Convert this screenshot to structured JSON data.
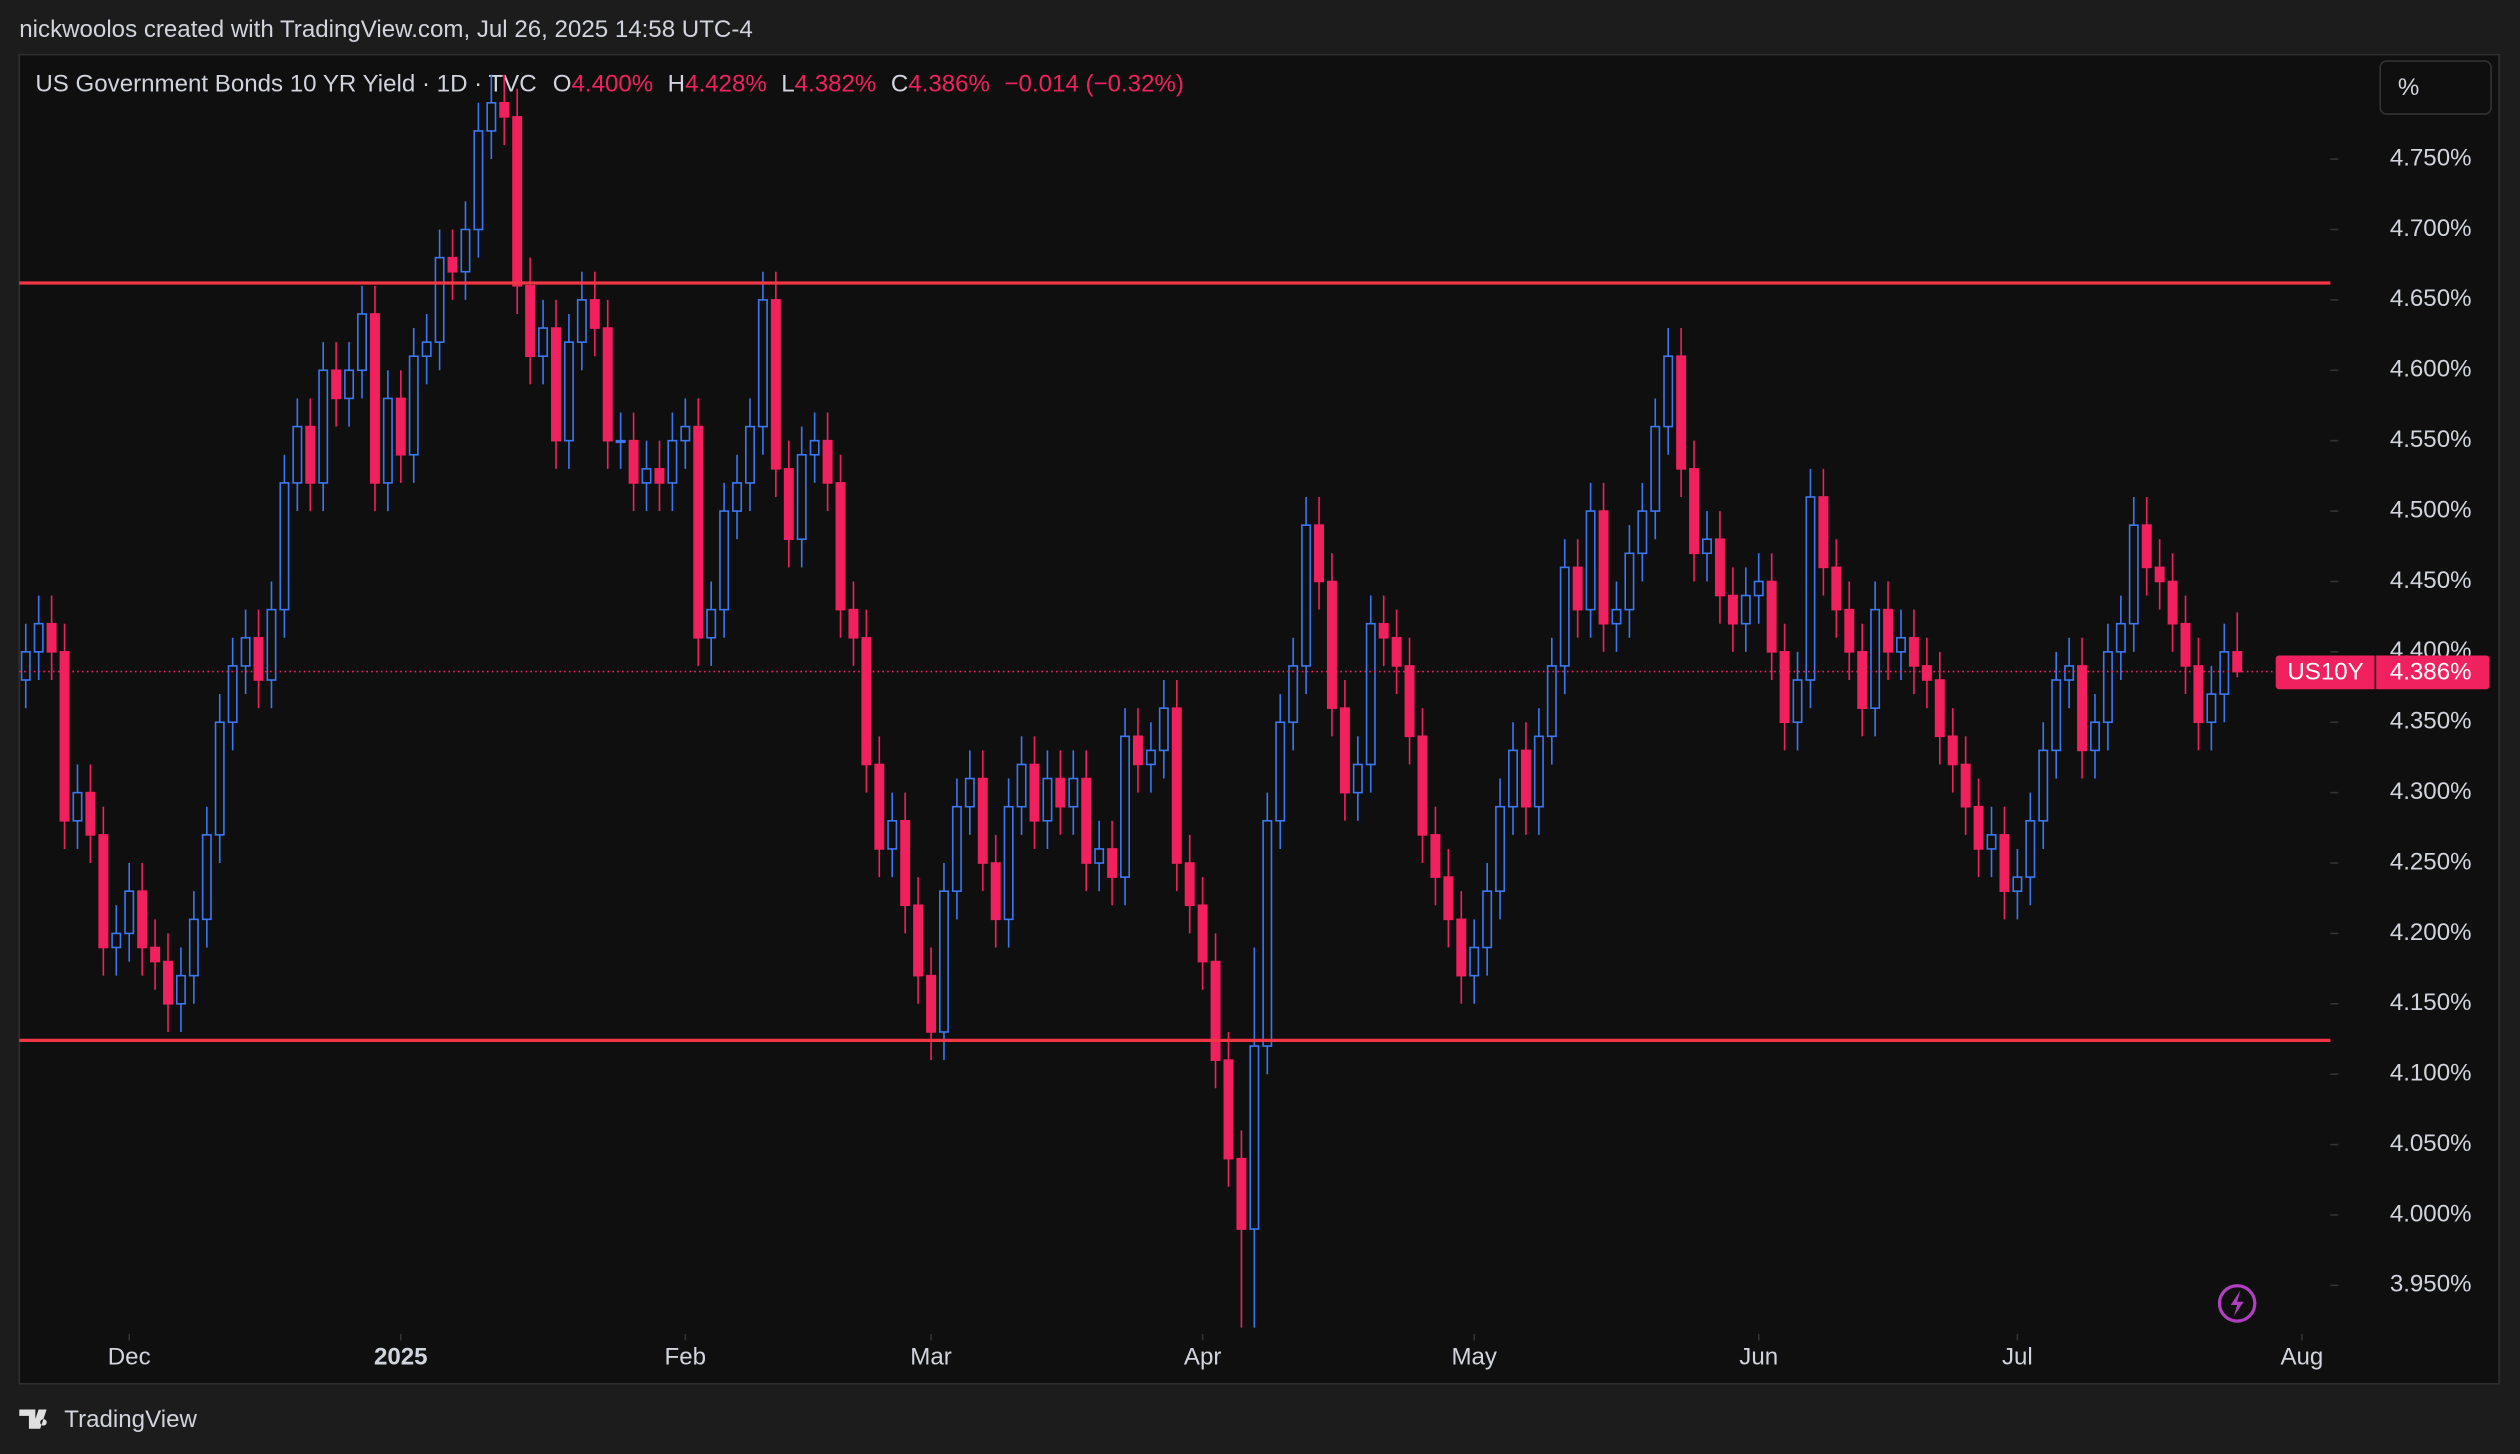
{
  "header": {
    "credit": "nickwoolos created with TradingView.com, Jul 26, 2025 14:58 UTC-4",
    "brand": "TradingView",
    "unit_button": "%"
  },
  "chart_data": {
    "type": "candlestick",
    "title": "US Government Bonds 10 YR Yield · 1D · TVC",
    "ohlc_legend": [
      {
        "key": "O",
        "text": "4.400%"
      },
      {
        "key": "H",
        "text": "4.428%"
      },
      {
        "key": "L",
        "text": "4.382%"
      },
      {
        "key": "C",
        "text": "4.386%"
      }
    ],
    "change_text": "−0.014 (−0.32%)",
    "up_color": "#3b78f0",
    "down_color": "#f0215e",
    "level_color": "#f23645",
    "xlim": [
      -0.5,
      178.2
    ],
    "ylim": [
      3.9155,
      4.8242
    ],
    "xticks": [
      {
        "value": 8,
        "label": "Dec"
      },
      {
        "value": 29,
        "label": "2025"
      },
      {
        "value": 51,
        "label": "Feb"
      },
      {
        "value": 70,
        "label": "Mar"
      },
      {
        "value": 91,
        "label": "Apr"
      },
      {
        "value": 112,
        "label": "May"
      },
      {
        "value": 134,
        "label": "Jun"
      },
      {
        "value": 154,
        "label": "Jul"
      },
      {
        "value": 176,
        "label": "Aug"
      }
    ],
    "yticks": [
      {
        "value": 3.95,
        "label": "3.950%"
      },
      {
        "value": 4.0,
        "label": "4.000%"
      },
      {
        "value": 4.05,
        "label": "4.050%"
      },
      {
        "value": 4.1,
        "label": "4.100%"
      },
      {
        "value": 4.15,
        "label": "4.150%"
      },
      {
        "value": 4.2,
        "label": "4.200%"
      },
      {
        "value": 4.25,
        "label": "4.250%"
      },
      {
        "value": 4.3,
        "label": "4.300%"
      },
      {
        "value": 4.35,
        "label": "4.350%"
      },
      {
        "value": 4.4,
        "label": "4.400%"
      },
      {
        "value": 4.45,
        "label": "4.450%"
      },
      {
        "value": 4.5,
        "label": "4.500%"
      },
      {
        "value": 4.55,
        "label": "4.550%"
      },
      {
        "value": 4.6,
        "label": "4.600%"
      },
      {
        "value": 4.65,
        "label": "4.650%"
      },
      {
        "value": 4.7,
        "label": "4.700%"
      },
      {
        "value": 4.75,
        "label": "4.750%"
      }
    ],
    "levels": [
      4.662,
      4.124
    ],
    "price_tag": {
      "symbol": "US10Y",
      "value": 4.386,
      "label": "4.386%"
    },
    "open": [
      4.38,
      4.4,
      4.42,
      4.4,
      4.28,
      4.3,
      4.27,
      4.19,
      4.2,
      4.23,
      4.19,
      4.18,
      4.15,
      4.17,
      4.21,
      4.27,
      4.35,
      4.39,
      4.41,
      4.38,
      4.43,
      4.52,
      4.56,
      4.52,
      4.6,
      4.58,
      4.6,
      4.64,
      4.52,
      4.58,
      4.54,
      4.61,
      4.62,
      4.68,
      4.67,
      4.7,
      4.77,
      4.79,
      4.78,
      4.66,
      4.61,
      4.63,
      4.55,
      4.62,
      4.65,
      4.63,
      4.55,
      4.55,
      4.52,
      4.53,
      4.52,
      4.55,
      4.56,
      4.41,
      4.43,
      4.5,
      4.52,
      4.56,
      4.65,
      4.53,
      4.48,
      4.54,
      4.55,
      4.52,
      4.43,
      4.41,
      4.32,
      4.26,
      4.28,
      4.22,
      4.17,
      4.13,
      4.23,
      4.29,
      4.31,
      4.25,
      4.21,
      4.29,
      4.32,
      4.28,
      4.31,
      4.29,
      4.31,
      4.25,
      4.26,
      4.24,
      4.34,
      4.32,
      4.33,
      4.36,
      4.25,
      4.22,
      4.18,
      4.11,
      4.04,
      3.99,
      4.12,
      4.28,
      4.35,
      4.39,
      4.49,
      4.45,
      4.36,
      4.3,
      4.32,
      4.42,
      4.41,
      4.39,
      4.34,
      4.27,
      4.24,
      4.21,
      4.17,
      4.19,
      4.23,
      4.29,
      4.33,
      4.29,
      4.34,
      4.39,
      4.46,
      4.43,
      4.5,
      4.42,
      4.43,
      4.47,
      4.5,
      4.56,
      4.61,
      4.53,
      4.47,
      4.48,
      4.44,
      4.42,
      4.44,
      4.45,
      4.4,
      4.35,
      4.38,
      4.51,
      4.46,
      4.43,
      4.4,
      4.36,
      4.43,
      4.4,
      4.41,
      4.39,
      4.38,
      4.34,
      4.32,
      4.29,
      4.26,
      4.27,
      4.23,
      4.24,
      4.28,
      4.33,
      4.38,
      4.39,
      4.33,
      4.35,
      4.4,
      4.42,
      4.49,
      4.46,
      4.45,
      4.42,
      4.39,
      4.35,
      4.37,
      4.4
    ],
    "high": [
      4.42,
      4.44,
      4.44,
      4.42,
      4.32,
      4.32,
      4.29,
      4.22,
      4.25,
      4.25,
      4.21,
      4.2,
      4.19,
      4.23,
      4.29,
      4.37,
      4.41,
      4.43,
      4.43,
      4.45,
      4.54,
      4.58,
      4.58,
      4.62,
      4.62,
      4.62,
      4.66,
      4.66,
      4.6,
      4.6,
      4.63,
      4.64,
      4.7,
      4.7,
      4.72,
      4.79,
      4.81,
      4.81,
      4.8,
      4.68,
      4.65,
      4.65,
      4.64,
      4.67,
      4.67,
      4.65,
      4.57,
      4.57,
      4.55,
      4.55,
      4.57,
      4.58,
      4.58,
      4.45,
      4.52,
      4.54,
      4.58,
      4.67,
      4.67,
      4.55,
      4.56,
      4.57,
      4.57,
      4.54,
      4.45,
      4.43,
      4.34,
      4.3,
      4.3,
      4.24,
      4.19,
      4.25,
      4.31,
      4.33,
      4.33,
      4.27,
      4.31,
      4.34,
      4.34,
      4.33,
      4.33,
      4.33,
      4.33,
      4.28,
      4.28,
      4.36,
      4.36,
      4.35,
      4.38,
      4.38,
      4.27,
      4.24,
      4.2,
      4.13,
      4.06,
      4.19,
      4.3,
      4.37,
      4.41,
      4.51,
      4.51,
      4.47,
      4.38,
      4.34,
      4.44,
      4.44,
      4.43,
      4.41,
      4.36,
      4.29,
      4.26,
      4.23,
      4.21,
      4.25,
      4.31,
      4.35,
      4.35,
      4.36,
      4.41,
      4.48,
      4.48,
      4.52,
      4.52,
      4.45,
      4.49,
      4.52,
      4.58,
      4.63,
      4.63,
      4.55,
      4.5,
      4.5,
      4.46,
      4.46,
      4.47,
      4.47,
      4.42,
      4.4,
      4.53,
      4.53,
      4.48,
      4.45,
      4.42,
      4.45,
      4.45,
      4.43,
      4.43,
      4.41,
      4.4,
      4.36,
      4.34,
      4.31,
      4.29,
      4.29,
      4.26,
      4.3,
      4.35,
      4.4,
      4.41,
      4.41,
      4.37,
      4.42,
      4.44,
      4.51,
      4.51,
      4.48,
      4.47,
      4.44,
      4.41,
      4.39,
      4.42,
      4.428
    ],
    "low": [
      4.36,
      4.38,
      4.38,
      4.26,
      4.26,
      4.25,
      4.17,
      4.17,
      4.18,
      4.17,
      4.16,
      4.13,
      4.13,
      4.15,
      4.19,
      4.25,
      4.33,
      4.37,
      4.36,
      4.36,
      4.41,
      4.5,
      4.5,
      4.5,
      4.56,
      4.56,
      4.58,
      4.5,
      4.5,
      4.52,
      4.52,
      4.59,
      4.6,
      4.65,
      4.65,
      4.68,
      4.75,
      4.76,
      4.64,
      4.59,
      4.59,
      4.53,
      4.53,
      4.6,
      4.61,
      4.53,
      4.53,
      4.5,
      4.5,
      4.5,
      4.5,
      4.53,
      4.39,
      4.39,
      4.41,
      4.48,
      4.5,
      4.54,
      4.51,
      4.46,
      4.46,
      4.52,
      4.5,
      4.41,
      4.39,
      4.3,
      4.24,
      4.24,
      4.2,
      4.15,
      4.11,
      4.11,
      4.21,
      4.27,
      4.23,
      4.19,
      4.19,
      4.27,
      4.26,
      4.26,
      4.27,
      4.27,
      4.23,
      4.23,
      4.22,
      4.22,
      4.3,
      4.3,
      4.31,
      4.23,
      4.2,
      4.16,
      4.09,
      4.02,
      3.92,
      3.92,
      4.1,
      4.26,
      4.33,
      4.37,
      4.43,
      4.34,
      4.28,
      4.28,
      4.3,
      4.39,
      4.37,
      4.32,
      4.25,
      4.22,
      4.19,
      4.15,
      4.15,
      4.17,
      4.21,
      4.27,
      4.27,
      4.27,
      4.32,
      4.37,
      4.41,
      4.41,
      4.4,
      4.4,
      4.41,
      4.45,
      4.48,
      4.54,
      4.51,
      4.45,
      4.45,
      4.42,
      4.4,
      4.4,
      4.42,
      4.38,
      4.33,
      4.33,
      4.36,
      4.44,
      4.41,
      4.38,
      4.34,
      4.34,
      4.38,
      4.38,
      4.37,
      4.36,
      4.32,
      4.3,
      4.27,
      4.24,
      4.24,
      4.21,
      4.21,
      4.22,
      4.26,
      4.31,
      4.36,
      4.31,
      4.31,
      4.33,
      4.38,
      4.4,
      4.44,
      4.43,
      4.4,
      4.37,
      4.33,
      4.33,
      4.35,
      4.382
    ],
    "close": [
      4.4,
      4.42,
      4.4,
      4.28,
      4.3,
      4.27,
      4.19,
      4.2,
      4.23,
      4.19,
      4.18,
      4.15,
      4.17,
      4.21,
      4.27,
      4.35,
      4.39,
      4.41,
      4.38,
      4.43,
      4.52,
      4.56,
      4.52,
      4.6,
      4.58,
      4.6,
      4.64,
      4.52,
      4.58,
      4.54,
      4.61,
      4.62,
      4.68,
      4.67,
      4.7,
      4.77,
      4.79,
      4.78,
      4.66,
      4.61,
      4.63,
      4.55,
      4.62,
      4.65,
      4.63,
      4.55,
      4.55,
      4.52,
      4.53,
      4.52,
      4.55,
      4.56,
      4.41,
      4.43,
      4.5,
      4.52,
      4.56,
      4.65,
      4.53,
      4.48,
      4.54,
      4.55,
      4.52,
      4.43,
      4.41,
      4.32,
      4.26,
      4.28,
      4.22,
      4.17,
      4.13,
      4.23,
      4.29,
      4.31,
      4.25,
      4.21,
      4.29,
      4.32,
      4.28,
      4.31,
      4.29,
      4.31,
      4.25,
      4.26,
      4.24,
      4.34,
      4.32,
      4.33,
      4.36,
      4.25,
      4.22,
      4.18,
      4.11,
      4.04,
      3.99,
      4.12,
      4.28,
      4.35,
      4.39,
      4.49,
      4.45,
      4.36,
      4.3,
      4.32,
      4.42,
      4.41,
      4.39,
      4.34,
      4.27,
      4.24,
      4.21,
      4.17,
      4.19,
      4.23,
      4.29,
      4.33,
      4.29,
      4.34,
      4.39,
      4.46,
      4.43,
      4.5,
      4.42,
      4.43,
      4.47,
      4.5,
      4.56,
      4.61,
      4.53,
      4.47,
      4.48,
      4.44,
      4.42,
      4.44,
      4.45,
      4.4,
      4.35,
      4.38,
      4.51,
      4.46,
      4.43,
      4.4,
      4.36,
      4.43,
      4.4,
      4.41,
      4.39,
      4.38,
      4.34,
      4.32,
      4.29,
      4.26,
      4.27,
      4.23,
      4.24,
      4.28,
      4.33,
      4.38,
      4.39,
      4.33,
      4.35,
      4.4,
      4.42,
      4.49,
      4.46,
      4.45,
      4.42,
      4.39,
      4.35,
      4.37,
      4.4,
      4.386
    ]
  }
}
